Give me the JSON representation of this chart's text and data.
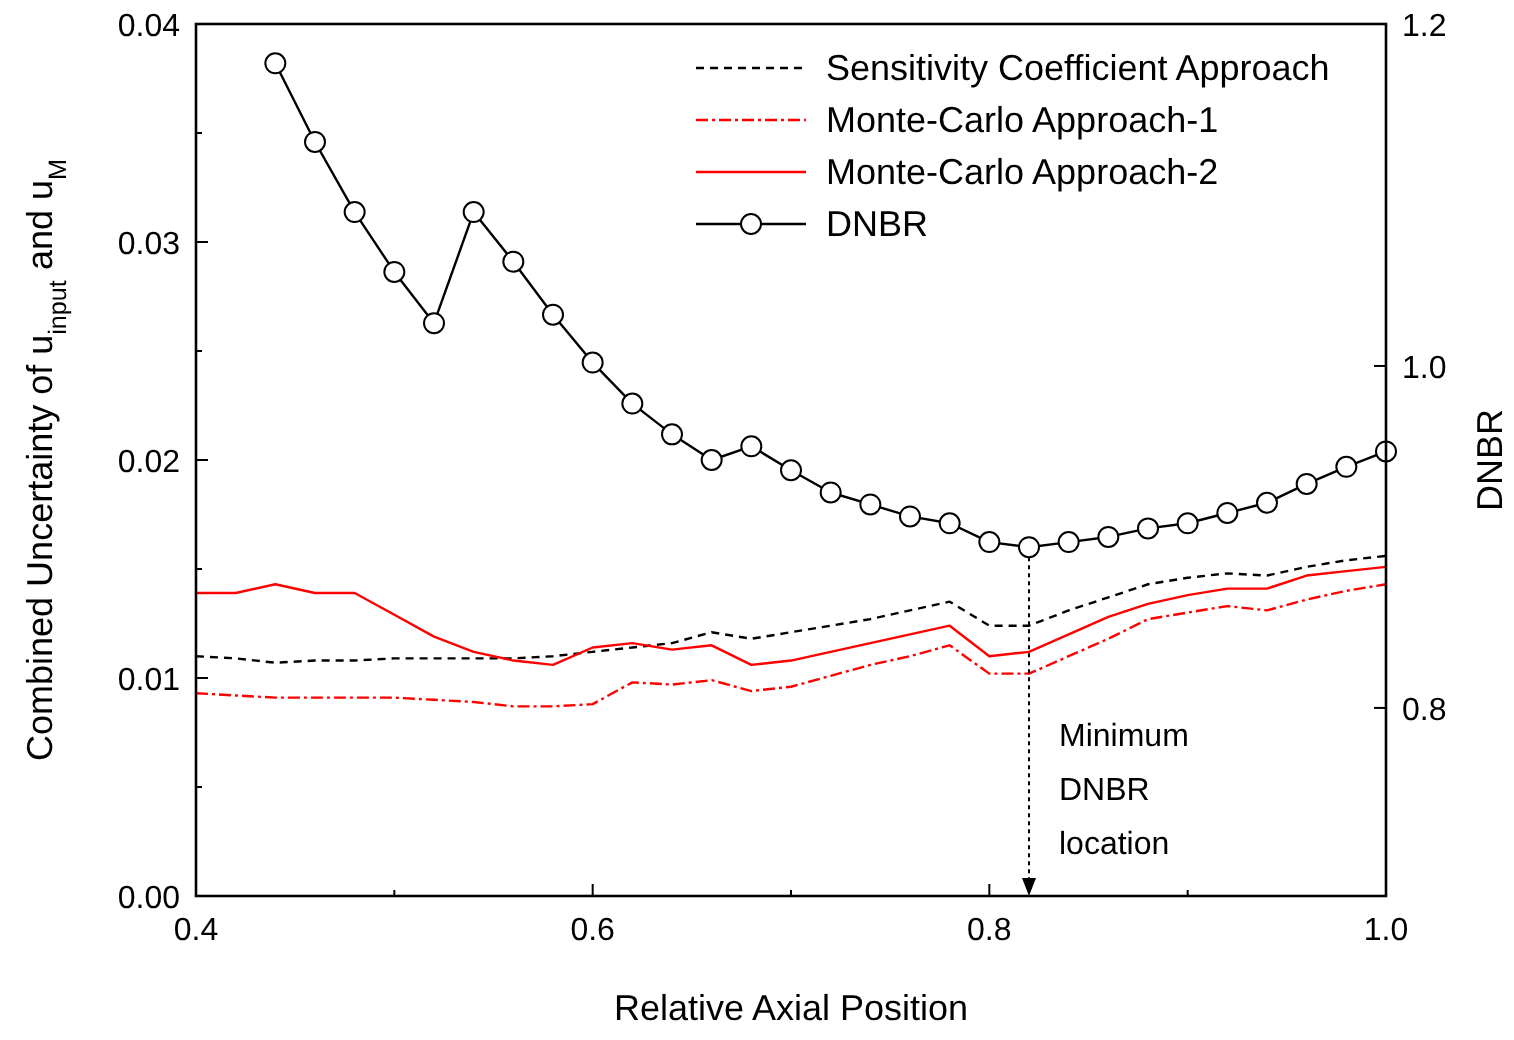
{
  "chart_data": {
    "type": "line",
    "xlabel": "Relative Axial Position",
    "ylabel": "Combined Uncertainty of u$_{input}$ and u$_{M}$",
    "y2label": "DNBR",
    "x": [
      0.4,
      0.42,
      0.44,
      0.46,
      0.48,
      0.5,
      0.52,
      0.54,
      0.56,
      0.58,
      0.6,
      0.62,
      0.64,
      0.66,
      0.68,
      0.7,
      0.72,
      0.74,
      0.76,
      0.78,
      0.8,
      0.82,
      0.84,
      0.86,
      0.88,
      0.9,
      0.92,
      0.94,
      0.96,
      0.98,
      1.0
    ],
    "series": [
      {
        "name": "Sensitivity Coefficient Approach",
        "color": "#000000",
        "line_style": "dashed",
        "marker": "none",
        "values": [
          0.011,
          0.0109,
          0.0107,
          0.0108,
          0.0108,
          0.0109,
          0.0109,
          0.0109,
          0.0109,
          0.011,
          0.0112,
          0.0114,
          0.0116,
          0.0121,
          0.0118,
          0.0121,
          0.0124,
          0.0127,
          0.0131,
          0.0135,
          0.0124,
          0.0124,
          0.0131,
          0.0137,
          0.0143,
          0.0146,
          0.0148,
          0.0147,
          0.0151,
          0.0154,
          0.0156
        ]
      },
      {
        "name": "Monte-Carlo Approach-1",
        "color": "#ff0000",
        "line_style": "dashdot",
        "marker": "none",
        "values": [
          0.0093,
          0.0092,
          0.0091,
          0.0091,
          0.0091,
          0.0091,
          0.009,
          0.0089,
          0.0087,
          0.0087,
          0.0088,
          0.0098,
          0.0097,
          0.0099,
          0.0094,
          0.0096,
          0.0101,
          0.0106,
          0.011,
          0.0115,
          0.0102,
          0.0102,
          0.011,
          0.0118,
          0.0127,
          0.013,
          0.0133,
          0.0131,
          0.0136,
          0.014,
          0.0143
        ]
      },
      {
        "name": "Monte-Carlo Approach-2",
        "color": "#ff0000",
        "line_style": "solid",
        "marker": "none",
        "values": [
          0.0139,
          0.0139,
          0.0143,
          0.0139,
          0.0139,
          0.0129,
          0.0119,
          0.0112,
          0.0108,
          0.0106,
          0.0114,
          0.0116,
          0.0113,
          0.0115,
          0.0106,
          0.0108,
          0.0112,
          0.0116,
          0.012,
          0.0124,
          0.011,
          0.0112,
          0.012,
          0.0128,
          0.0134,
          0.0138,
          0.0141,
          0.0141,
          0.0147,
          0.0149,
          0.0151
        ]
      },
      {
        "name": "DNBR",
        "color": "#000000",
        "line_style": "solid",
        "marker": "circle",
        "axis": "y2",
        "values": [
          null,
          null,
          1.177,
          1.131,
          1.09,
          1.055,
          1.025,
          1.09,
          1.061,
          1.03,
          1.002,
          0.978,
          0.96,
          0.945,
          0.953,
          0.939,
          0.926,
          0.919,
          0.912,
          0.908,
          0.897,
          0.894,
          0.897,
          0.9,
          0.905,
          0.908,
          0.914,
          0.92,
          0.931,
          0.941,
          0.95
        ]
      }
    ],
    "xlim": [
      0.4,
      1.0
    ],
    "xticks": [
      {
        "value": 0.4,
        "label": "0.4"
      },
      {
        "value": 0.5,
        "label": null
      },
      {
        "value": 0.6,
        "label": "0.6"
      },
      {
        "value": 0.7,
        "label": null
      },
      {
        "value": 0.8,
        "label": "0.8"
      },
      {
        "value": 0.9,
        "label": null
      },
      {
        "value": 1.0,
        "label": "1.0"
      }
    ],
    "ylim": [
      0,
      0.04
    ],
    "yticks": [
      {
        "value": 0,
        "label": "0.00"
      },
      {
        "value": 0.005,
        "label": null
      },
      {
        "value": 0.01,
        "label": "0.01"
      },
      {
        "value": 0.015,
        "label": null
      },
      {
        "value": 0.02,
        "label": "0.02"
      },
      {
        "value": 0.025,
        "label": null
      },
      {
        "value": 0.03,
        "label": "0.03"
      },
      {
        "value": 0.035,
        "label": null
      },
      {
        "value": 0.04,
        "label": "0.04"
      }
    ],
    "y2lim": [
      0.69,
      1.2
    ],
    "y2ticks": [
      0.8,
      {
        "value": 1.0,
        "label": "1.0"
      },
      1.2
    ],
    "legend": "top right",
    "grid": false,
    "ref_lines": [
      {
        "axis": "x",
        "value": 0.82,
        "label": "Minimum DNBR location",
        "line_style": "dotted"
      }
    ]
  }
}
